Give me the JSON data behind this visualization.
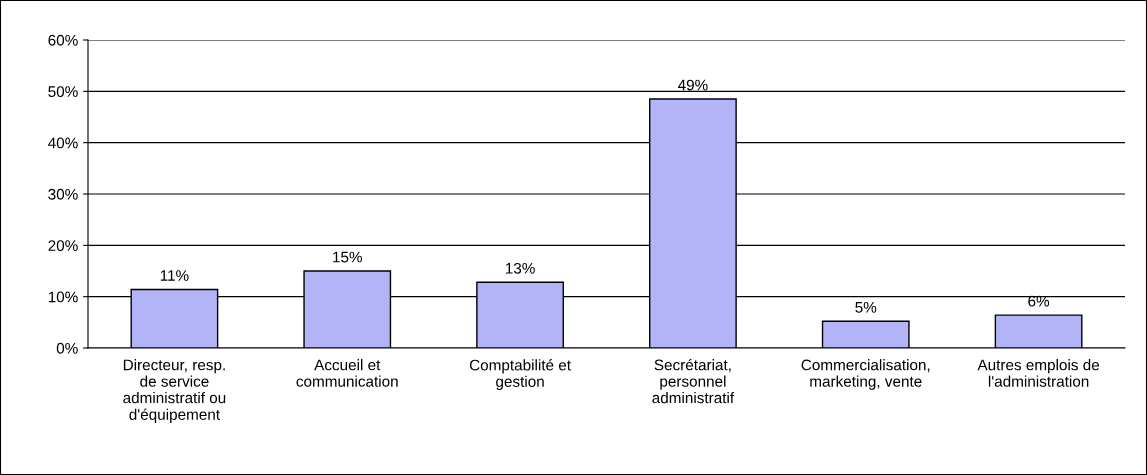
{
  "chart_data": {
    "type": "bar",
    "categories": [
      "Directeur, resp.\nde service\nadministratif ou\nd'équipement",
      "Accueil et\ncommunication",
      "Comptabilité et\ngestion",
      "Secrétariat,\npersonnel\nadministratif",
      "Commercialisation,\nmarketing, vente",
      "Autres emplois de\nl'administration"
    ],
    "values": [
      11.4,
      15.0,
      12.8,
      48.5,
      5.2,
      6.4
    ],
    "value_labels": [
      "11%",
      "15%",
      "13%",
      "49%",
      "5%",
      "6%"
    ],
    "color": "#b3b3f7",
    "ylim": [
      0,
      60
    ],
    "yticks": [
      {
        "value": 0,
        "label": "0%"
      },
      {
        "value": 10,
        "label": "10%"
      },
      {
        "value": 20,
        "label": "20%"
      },
      {
        "value": 30,
        "label": "30%"
      },
      {
        "value": 40,
        "label": "40%"
      },
      {
        "value": 50,
        "label": "50%"
      },
      {
        "value": 60,
        "label": "60%"
      }
    ],
    "grid": "y"
  }
}
